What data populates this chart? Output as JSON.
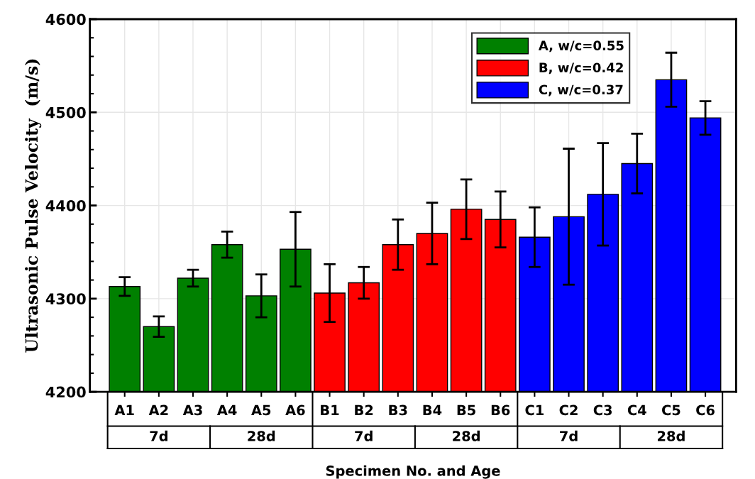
{
  "chart_data": {
    "type": "bar",
    "xlabel": "Specimen No. and Age",
    "ylabel": "Ultrasonic Pulse Velocity  (m/s)",
    "categories": [
      "A1",
      "A2",
      "A3",
      "A4",
      "A5",
      "A6",
      "B1",
      "B2",
      "B3",
      "B4",
      "B5",
      "B6",
      "C1",
      "C2",
      "C3",
      "C4",
      "C5",
      "C6"
    ],
    "series": [
      {
        "name": "A, w/c=0.55",
        "color": "#008000",
        "values": [
          4313,
          4270,
          4322,
          4358,
          4303,
          4353,
          null,
          null,
          null,
          null,
          null,
          null,
          null,
          null,
          null,
          null,
          null,
          null
        ],
        "errors": [
          10,
          11,
          9,
          14,
          23,
          40,
          null,
          null,
          null,
          null,
          null,
          null,
          null,
          null,
          null,
          null,
          null,
          null
        ]
      },
      {
        "name": "B, w/c=0.42",
        "color": "#ff0000",
        "values": [
          null,
          null,
          null,
          null,
          null,
          null,
          4306,
          4317,
          4358,
          4370,
          4396,
          4385,
          null,
          null,
          null,
          null,
          null,
          null
        ],
        "errors": [
          null,
          null,
          null,
          null,
          null,
          null,
          31,
          17,
          27,
          33,
          32,
          30,
          null,
          null,
          null,
          null,
          null,
          null
        ]
      },
      {
        "name": "C, w/c=0.37",
        "color": "#0000ff",
        "values": [
          null,
          null,
          null,
          null,
          null,
          null,
          null,
          null,
          null,
          null,
          null,
          null,
          4366,
          4388,
          4412,
          4445,
          4535,
          4494
        ],
        "errors": [
          null,
          null,
          null,
          null,
          null,
          null,
          null,
          null,
          null,
          null,
          null,
          null,
          32,
          73,
          55,
          32,
          29,
          18
        ]
      }
    ],
    "ylim": [
      4200,
      4600
    ],
    "yticks": [
      4200,
      4300,
      4400,
      4500,
      4600
    ],
    "grid": true,
    "legend": "top right",
    "annotations": [
      "7d",
      "28d",
      "7d",
      "28d",
      "7d",
      "28d"
    ]
  }
}
